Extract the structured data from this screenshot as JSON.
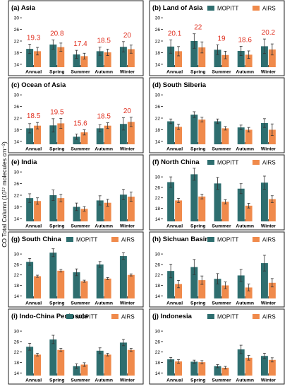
{
  "figure": {
    "ylabel": "CO Total Column (10¹⁷ molecules cm⁻²)",
    "legend": [
      {
        "label": "MOPITT",
        "color": "#2e6e6f"
      },
      {
        "label": "AIRS",
        "color": "#f08a4b"
      }
    ],
    "colors": {
      "mopitt": "#2e6e6f",
      "airs": "#f08a4b",
      "annotation": "#e03020"
    }
  },
  "chart_data": [
    {
      "type": "bar",
      "title": "(a) Asia",
      "categories": [
        "Annual",
        "Spring",
        "Summer",
        "Autumn",
        "Winter"
      ],
      "series": [
        {
          "name": "MOPITT",
          "values": [
            19.3,
            20.8,
            17.4,
            18.5,
            20.0
          ],
          "errors": [
            1.6,
            1.6,
            1.4,
            1.4,
            1.8
          ]
        },
        {
          "name": "AIRS",
          "values": [
            18.5,
            19.9,
            16.8,
            18.1,
            19.2
          ],
          "errors": [
            1.3,
            1.4,
            1.0,
            1.1,
            1.4
          ]
        }
      ],
      "annotations": [
        "19.3",
        "20.8",
        "17.4",
        "18.5",
        "20"
      ],
      "ylim": [
        13,
        31
      ],
      "yticks": [
        14,
        18,
        22,
        26,
        30
      ],
      "legend": false
    },
    {
      "type": "bar",
      "title": "(b) Land of Asia",
      "categories": [
        "Annual",
        "Spring",
        "Summer",
        "Autumn",
        "Winter"
      ],
      "series": [
        {
          "name": "MOPITT",
          "values": [
            20.1,
            22.0,
            19.0,
            18.6,
            20.2
          ],
          "errors": [
            2.3,
            2.5,
            1.7,
            1.6,
            2.5
          ]
        },
        {
          "name": "AIRS",
          "values": [
            18.5,
            19.8,
            17.2,
            17.3,
            19.1
          ],
          "errors": [
            1.6,
            1.9,
            1.3,
            1.3,
            1.9
          ]
        }
      ],
      "annotations": [
        "20.1",
        "22",
        "19",
        "18.6",
        "20.2"
      ],
      "ylim": [
        13,
        31
      ],
      "yticks": [
        14,
        18,
        22,
        26,
        30
      ],
      "legend": true
    },
    {
      "type": "bar",
      "title": "(c) Ocean of Asia",
      "categories": [
        "Annual",
        "Spring",
        "Summer",
        "Autumn",
        "Winter"
      ],
      "series": [
        {
          "name": "MOPITT",
          "values": [
            18.5,
            19.5,
            15.6,
            18.5,
            20.0
          ],
          "errors": [
            1.6,
            2.3,
            0.9,
            1.2,
            2.1
          ]
        },
        {
          "name": "AIRS",
          "values": [
            19.4,
            20.2,
            17.1,
            19.4,
            20.7
          ],
          "errors": [
            1.1,
            1.7,
            0.9,
            1.0,
            1.6
          ]
        }
      ],
      "annotations": [
        "18.5",
        "19.5",
        "15.6",
        "18.5",
        "20"
      ],
      "ylim": [
        13,
        31
      ],
      "yticks": [
        14,
        18,
        22,
        26,
        30
      ],
      "legend": false
    },
    {
      "type": "bar",
      "title": "(d) South Siberia",
      "categories": [
        "Annual",
        "Spring",
        "Summer",
        "Autumn",
        "Winter"
      ],
      "series": [
        {
          "name": "MOPITT",
          "values": [
            20.9,
            23.2,
            20.9,
            18.8,
            20.3
          ],
          "errors": [
            0.8,
            1.0,
            0.8,
            0.8,
            1.5
          ]
        },
        {
          "name": "AIRS",
          "values": [
            19.0,
            21.5,
            18.5,
            18.0,
            18.0
          ],
          "errors": [
            0.9,
            0.8,
            0.6,
            0.8,
            2.0
          ]
        }
      ],
      "annotations": [],
      "ylim": [
        13,
        31
      ],
      "yticks": [
        14,
        18,
        22,
        26,
        30
      ],
      "legend": false
    },
    {
      "type": "bar",
      "title": "(e) India",
      "categories": [
        "Annual",
        "Spring",
        "Summer",
        "Autumn",
        "Winter"
      ],
      "series": [
        {
          "name": "MOPITT",
          "values": [
            21.0,
            22.0,
            18.0,
            20.2,
            22.2
          ],
          "errors": [
            1.5,
            1.8,
            1.3,
            1.6,
            1.8
          ]
        },
        {
          "name": "AIRS",
          "values": [
            20.0,
            21.0,
            17.3,
            19.4,
            21.5
          ],
          "errors": [
            1.1,
            1.3,
            0.8,
            1.2,
            1.6
          ]
        }
      ],
      "annotations": [],
      "ylim": [
        13,
        31
      ],
      "yticks": [
        14,
        18,
        22,
        26,
        30
      ],
      "legend": false
    },
    {
      "type": "bar",
      "title": "(f) North China",
      "categories": [
        "Annual",
        "Spring",
        "Summer",
        "Autumn",
        "Winter"
      ],
      "series": [
        {
          "name": "MOPITT",
          "values": [
            28.0,
            31.0,
            27.5,
            25.5,
            27.8
          ],
          "errors": [
            2.0,
            2.3,
            2.3,
            1.9,
            2.5
          ]
        },
        {
          "name": "AIRS",
          "values": [
            21.0,
            22.5,
            20.5,
            19.0,
            21.5
          ],
          "errors": [
            0.8,
            0.9,
            0.8,
            0.9,
            1.3
          ]
        }
      ],
      "annotations": [],
      "ylim": [
        13,
        33
      ],
      "yticks": [
        14,
        18,
        22,
        26,
        30
      ],
      "legend": true
    },
    {
      "type": "bar",
      "title": "(g) South China",
      "categories": [
        "Annual",
        "Spring",
        "Summer",
        "Autumn",
        "Winter"
      ],
      "series": [
        {
          "name": "MOPITT",
          "values": [
            27.0,
            30.5,
            23.0,
            26.0,
            29.2
          ],
          "errors": [
            1.3,
            1.5,
            1.3,
            1.1,
            1.3
          ]
        },
        {
          "name": "AIRS",
          "values": [
            21.5,
            23.6,
            19.6,
            20.6,
            22.0
          ],
          "errors": [
            0.4,
            0.5,
            0.4,
            0.4,
            0.4
          ]
        }
      ],
      "annotations": [],
      "ylim": [
        13,
        33
      ],
      "yticks": [
        14,
        18,
        22,
        26,
        30
      ],
      "legend": true
    },
    {
      "type": "bar",
      "title": "(h) Sichuan Basin",
      "categories": [
        "Annual",
        "Spring",
        "Summer",
        "Autumn",
        "Winter"
      ],
      "series": [
        {
          "name": "MOPITT",
          "values": [
            23.5,
            25.0,
            20.5,
            21.8,
            26.5
          ],
          "errors": [
            2.6,
            2.9,
            2.0,
            2.3,
            3.0
          ]
        },
        {
          "name": "AIRS",
          "values": [
            18.5,
            20.0,
            18.0,
            17.2,
            19.0
          ],
          "errors": [
            1.4,
            1.6,
            1.3,
            1.3,
            1.6
          ]
        }
      ],
      "annotations": [],
      "ylim": [
        13,
        33
      ],
      "yticks": [
        14,
        18,
        22,
        26,
        30
      ],
      "legend": true
    },
    {
      "type": "bar",
      "title": "(i) Indo-China Peninsula",
      "categories": [
        "Annual",
        "Spring",
        "Summer",
        "Autumn",
        "Winter"
      ],
      "series": [
        {
          "name": "MOPITT",
          "values": [
            24.0,
            26.8,
            16.6,
            22.5,
            25.6
          ],
          "errors": [
            1.3,
            1.6,
            0.9,
            1.1,
            1.2
          ]
        },
        {
          "name": "AIRS",
          "values": [
            21.0,
            22.8,
            17.2,
            21.0,
            22.8
          ],
          "errors": [
            0.5,
            0.6,
            0.7,
            0.5,
            0.6
          ]
        }
      ],
      "annotations": [],
      "ylim": [
        13,
        33
      ],
      "yticks": [
        14,
        18,
        22,
        26,
        30
      ],
      "legend": true
    },
    {
      "type": "bar",
      "title": "(j) Indonesia",
      "categories": [
        "Annual",
        "Spring",
        "Summer",
        "Autumn",
        "Winter"
      ],
      "series": [
        {
          "name": "MOPITT",
          "values": [
            19.2,
            18.3,
            16.6,
            23.0,
            20.5
          ],
          "errors": [
            0.7,
            0.6,
            0.6,
            1.6,
            1.0
          ]
        },
        {
          "name": "AIRS",
          "values": [
            18.4,
            18.1,
            16.0,
            19.8,
            19.0
          ],
          "errors": [
            0.7,
            0.6,
            0.5,
            0.9,
            0.8
          ]
        }
      ],
      "annotations": [],
      "ylim": [
        13,
        33
      ],
      "yticks": [
        14,
        18,
        22,
        26,
        30
      ],
      "legend": true
    }
  ]
}
